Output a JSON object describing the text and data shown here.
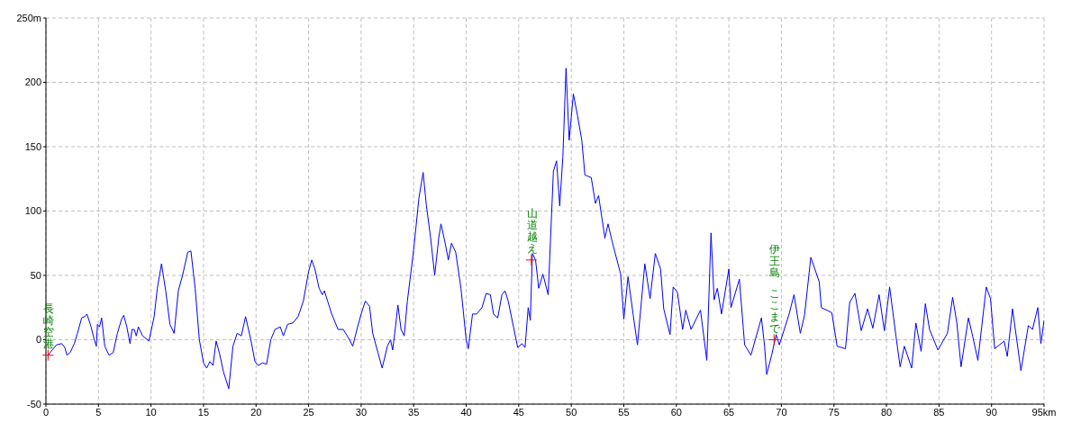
{
  "chart_data": {
    "type": "line",
    "xlim": [
      0,
      95
    ],
    "ylim": [
      -50,
      250
    ],
    "xticks": [
      0,
      5,
      10,
      15,
      20,
      25,
      30,
      35,
      40,
      45,
      50,
      55,
      60,
      65,
      70,
      75,
      80,
      85,
      90,
      {
        "value": 95,
        "label": "95km"
      }
    ],
    "yticks": [
      -50,
      0,
      50,
      100,
      150,
      200,
      {
        "value": 250,
        "label": "250m"
      }
    ],
    "grid": true,
    "legend": false,
    "marker": "none",
    "line_style": "solid",
    "annotations": [
      {
        "text": "長崎空港",
        "x": 0.2,
        "y": -12
      },
      {
        "text": "山道越え",
        "x": 46.2,
        "y": 62
      },
      {
        "text": "ここまで",
        "x": 69.3,
        "y": 0
      },
      "伊王島"
    ],
    "series": [
      {
        "color": "#0000ff",
        "x": [
          0.2,
          0.6,
          1.0,
          1.5,
          1.8,
          2.0,
          2.3,
          2.7,
          3.0,
          3.4,
          3.7,
          3.9,
          4.3,
          4.6,
          4.8,
          4.9,
          5.1,
          5.3,
          5.6,
          6.0,
          6.4,
          6.8,
          7.2,
          7.4,
          7.7,
          8.0,
          8.2,
          8.4,
          8.6,
          8.8,
          9.2,
          9.8,
          10.3,
          10.6,
          11.0,
          11.4,
          11.8,
          12.2,
          12.6,
          13.0,
          13.5,
          13.8,
          14.2,
          14.6,
          15.0,
          15.3,
          15.6,
          15.9,
          16.2,
          16.5,
          16.9,
          17.4,
          17.8,
          18.2,
          18.6,
          19.0,
          19.5,
          19.9,
          20.2,
          20.6,
          21.0,
          21.4,
          21.8,
          22.3,
          22.6,
          23.0,
          23.5,
          24.0,
          24.5,
          25.0,
          25.3,
          25.6,
          26.0,
          26.3,
          26.5,
          27.2,
          27.8,
          28.3,
          28.9,
          29.2,
          29.6,
          30.0,
          30.4,
          30.8,
          31.1,
          31.6,
          32.0,
          32.5,
          32.8,
          33.0,
          33.2,
          33.5,
          33.8,
          34.1,
          34.4,
          35.0,
          35.5,
          35.9,
          36.2,
          36.6,
          37.0,
          37.4,
          37.6,
          38.0,
          38.3,
          38.6,
          39.0,
          39.5,
          40.0,
          40.2,
          40.6,
          41.0,
          41.5,
          41.9,
          42.3,
          42.6,
          43.0,
          43.4,
          43.7,
          44.0,
          44.5,
          44.9,
          45.3,
          45.6,
          45.9,
          46.1,
          46.3,
          46.6,
          46.9,
          47.3,
          47.8,
          48.3,
          48.6,
          48.9,
          49.2,
          49.5,
          49.8,
          50.2,
          50.6,
          51.0,
          51.3,
          51.9,
          52.3,
          52.6,
          53.2,
          53.5,
          53.9,
          54.7,
          55.0,
          55.4,
          55.9,
          56.3,
          57.0,
          57.5,
          58.0,
          58.5,
          58.8,
          59.4,
          59.7,
          60.1,
          60.6,
          60.9,
          61.4,
          62.3,
          62.9,
          63.3,
          63.6,
          63.9,
          64.3,
          65.0,
          65.2,
          66.0,
          66.5,
          67.1,
          68.1,
          68.4,
          68.6,
          69.1,
          69.5,
          69.8,
          70.7,
          71.2,
          71.8,
          72.2,
          72.8,
          73.6,
          73.8,
          74.8,
          75.3,
          76.1,
          76.5,
          77.0,
          77.6,
          78.2,
          78.7,
          79.3,
          79.8,
          80.3,
          80.9,
          81.3,
          81.7,
          82.4,
          82.8,
          83.3,
          83.7,
          84.1,
          84.9,
          85.8,
          86.3,
          86.7,
          87.1,
          87.8,
          88.2,
          88.7,
          89.5,
          89.9,
          90.3,
          91.2,
          91.5,
          92.0,
          92.8,
          93.5,
          93.9,
          94.4,
          94.7,
          95.0
        ],
        "values": [
          -12,
          -8,
          -4,
          -3,
          -6,
          -12,
          -10,
          -3,
          5,
          17,
          18,
          20,
          10,
          0,
          -5,
          12,
          10,
          17,
          -5,
          -12,
          -10,
          5,
          16,
          19,
          10,
          -3,
          8,
          8,
          3,
          10,
          3,
          -1,
          18,
          40,
          59,
          38,
          12,
          5,
          38,
          50,
          68,
          69,
          40,
          0,
          -18,
          -22,
          -17,
          -20,
          -1,
          -10,
          -25,
          -38,
          -5,
          5,
          3,
          18,
          0,
          -17,
          -20,
          -18,
          -19,
          0,
          8,
          10,
          3,
          12,
          13,
          18,
          30,
          53,
          62,
          55,
          40,
          35,
          38,
          20,
          8,
          8,
          0,
          -5,
          8,
          20,
          30,
          26,
          5,
          -10,
          -22,
          -5,
          0,
          -8,
          5,
          27,
          8,
          3,
          30,
          70,
          110,
          130,
          105,
          80,
          50,
          80,
          90,
          75,
          62,
          75,
          68,
          40,
          0,
          -7,
          20,
          20,
          25,
          36,
          35,
          20,
          17,
          35,
          38,
          30,
          10,
          -6,
          -3,
          -6,
          25,
          15,
          67,
          62,
          40,
          51,
          35,
          131,
          139,
          104,
          142,
          211,
          155,
          191,
          174,
          155,
          128,
          126,
          106,
          112,
          79,
          90,
          76,
          51,
          16,
          49,
          19,
          -4,
          59,
          32,
          67,
          55,
          24,
          4,
          41,
          37,
          8,
          23,
          8,
          23,
          -16,
          83,
          31,
          40,
          20,
          55,
          25,
          47,
          -4,
          -12,
          17,
          -5,
          -27,
          -11,
          4,
          -4,
          19,
          35,
          5,
          19,
          64,
          45,
          25,
          21,
          -5,
          -7,
          29,
          36,
          7,
          24,
          9,
          35,
          7,
          41,
          3,
          -21,
          -5,
          -22,
          13,
          -9,
          28,
          8,
          -8,
          5,
          33,
          13,
          -21,
          17,
          3,
          -16,
          41,
          32,
          -7,
          -1,
          -13,
          24,
          -24,
          11,
          8,
          25,
          -3,
          15
        ]
      }
    ]
  }
}
